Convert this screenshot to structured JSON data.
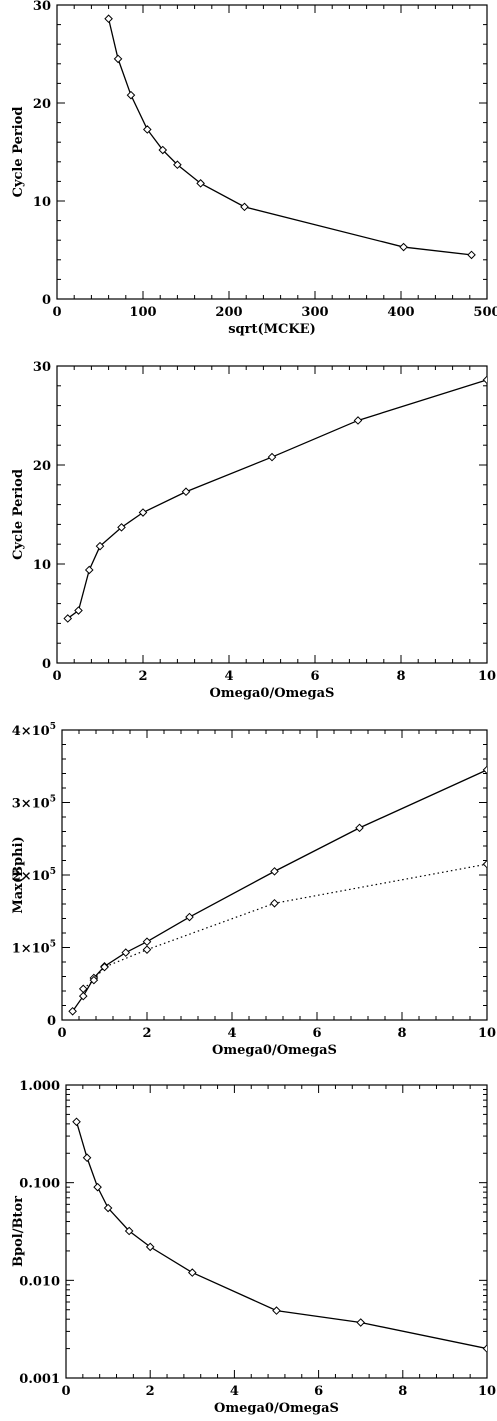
{
  "chart_data": [
    {
      "type": "line",
      "xlabel": "sqrt(MCKE)",
      "ylabel": "Cycle Period",
      "xlim": [
        0,
        500
      ],
      "ylim": [
        0,
        30
      ],
      "xticks": [
        0,
        100,
        200,
        300,
        400,
        500
      ],
      "yticks": [
        0,
        10,
        20,
        30
      ],
      "xtick_labels": [
        "0",
        "100",
        "200",
        "300",
        "400",
        "500"
      ],
      "ytick_labels": [
        "0",
        "10",
        "20",
        "30"
      ],
      "yscale": "linear",
      "series": [
        {
          "style": "solid",
          "x": [
            60,
            71,
            86,
            105,
            123,
            140,
            167,
            218,
            403,
            482
          ],
          "y": [
            28.6,
            24.5,
            20.8,
            17.3,
            15.2,
            13.7,
            11.8,
            9.4,
            5.3,
            4.5
          ]
        }
      ]
    },
    {
      "type": "line",
      "xlabel": "Omega0/OmegaS",
      "ylabel": "Cycle Period",
      "xlim": [
        0,
        10
      ],
      "ylim": [
        0,
        30
      ],
      "xticks": [
        0,
        2,
        4,
        6,
        8,
        10
      ],
      "yticks": [
        0,
        10,
        20,
        30
      ],
      "xtick_labels": [
        "0",
        "2",
        "4",
        "6",
        "8",
        "10"
      ],
      "ytick_labels": [
        "0",
        "10",
        "20",
        "30"
      ],
      "yscale": "linear",
      "series": [
        {
          "style": "solid",
          "x": [
            0.25,
            0.5,
            0.75,
            1.0,
            1.5,
            2.0,
            3.0,
            5.0,
            7.0,
            10.0
          ],
          "y": [
            4.5,
            5.3,
            9.4,
            11.8,
            13.7,
            15.2,
            17.3,
            20.8,
            24.5,
            28.6
          ]
        }
      ]
    },
    {
      "type": "line",
      "xlabel": "Omega0/OmegaS",
      "ylabel": "Max(Bphi)",
      "xlim": [
        0,
        10
      ],
      "ylim": [
        0,
        400000
      ],
      "xticks": [
        0,
        2,
        4,
        6,
        8,
        10
      ],
      "yticks": [
        0,
        100000,
        200000,
        300000,
        400000
      ],
      "xtick_labels": [
        "0",
        "2",
        "4",
        "6",
        "8",
        "10"
      ],
      "ytick_labels": [
        {
          "mant": "0",
          "exp": ""
        },
        {
          "mant": "1×10",
          "exp": "5"
        },
        {
          "mant": "2×10",
          "exp": "5"
        },
        {
          "mant": "3×10",
          "exp": "5"
        },
        {
          "mant": "4×10",
          "exp": "5"
        }
      ],
      "yscale": "linear",
      "series": [
        {
          "style": "solid",
          "x": [
            0.25,
            0.5,
            0.75,
            1.0,
            1.5,
            2.0,
            3.0,
            5.0,
            7.0,
            10.0
          ],
          "y": [
            12000,
            33000,
            58000,
            74000,
            93000,
            108000,
            142000,
            205000,
            265000,
            345000
          ]
        },
        {
          "style": "dotted",
          "x": [
            0.5,
            0.75,
            1.0,
            2.0,
            5.0,
            10.0
          ],
          "y": [
            43000,
            55000,
            73000,
            97000,
            161000,
            215000
          ]
        }
      ]
    },
    {
      "type": "line",
      "xlabel": "Omega0/OmegaS",
      "ylabel": "Bpol/Btor",
      "xlim": [
        0,
        10
      ],
      "ylim": [
        0.001,
        1.0
      ],
      "xticks": [
        0,
        2,
        4,
        6,
        8,
        10
      ],
      "yticks": [
        0.001,
        0.01,
        0.1,
        1.0
      ],
      "xtick_labels": [
        "0",
        "2",
        "4",
        "6",
        "8",
        "10"
      ],
      "ytick_labels": [
        "0.001",
        "0.010",
        "0.100",
        "1.000"
      ],
      "yscale": "log",
      "series": [
        {
          "style": "solid",
          "x": [
            0.25,
            0.5,
            0.75,
            1.0,
            1.5,
            2.0,
            3.0,
            5.0,
            7.0,
            10.0
          ],
          "y": [
            0.42,
            0.18,
            0.09,
            0.055,
            0.032,
            0.022,
            0.012,
            0.0049,
            0.0037,
            0.002
          ]
        }
      ]
    }
  ]
}
